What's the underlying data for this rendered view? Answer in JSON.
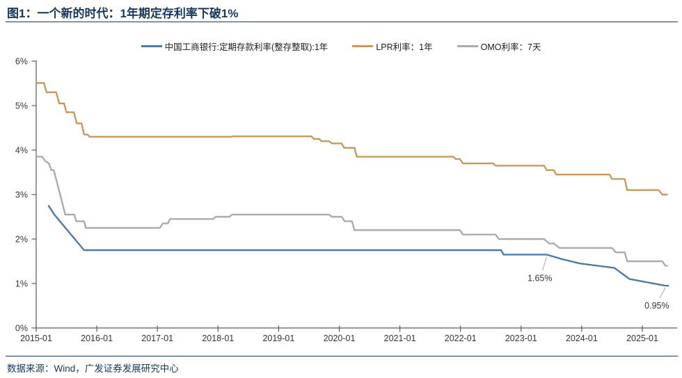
{
  "header": {
    "title": "图1：一个新的时代：1年期定存利率下破1%"
  },
  "footer": {
    "source": "数据来源：Wind，广发证券发展研究中心"
  },
  "theme": {
    "accent_navy": "#17375E",
    "axis_color": "#595959",
    "tick_label_color": "#333333",
    "annotation_color": "#333333",
    "leader_line_color": "#aaaaaa",
    "background": "#ffffff"
  },
  "chart_data": {
    "type": "line",
    "title": "图1：一个新的时代：1年期定存利率下破1%",
    "xlabel": "",
    "ylabel": "",
    "grid": false,
    "legend_position": "top-center",
    "x_axis": {
      "ticks": [
        "2015-01",
        "2016-01",
        "2017-01",
        "2018-01",
        "2019-01",
        "2020-01",
        "2021-01",
        "2022-01",
        "2023-01",
        "2024-01",
        "2025-01"
      ],
      "start_year": 2015.0,
      "end_year": 2025.57
    },
    "y_axis": {
      "ticks": [
        "0%",
        "1%",
        "2%",
        "3%",
        "4%",
        "5%",
        "6%"
      ],
      "min": 0,
      "max": 6,
      "unit": "%"
    },
    "series": [
      {
        "id": "icbc-deposit-1y",
        "name": "中国工商银行:定期存款利率(整存整取):1年",
        "color": "#4F7AA5",
        "points": [
          [
            2015.2,
            2.76
          ],
          [
            2015.3,
            2.55
          ],
          [
            2015.79,
            1.75
          ],
          [
            2022.67,
            1.75
          ],
          [
            2022.71,
            1.65
          ],
          [
            2023.42,
            1.65
          ],
          [
            2023.67,
            1.55
          ],
          [
            2023.97,
            1.45
          ],
          [
            2024.54,
            1.35
          ],
          [
            2024.79,
            1.1
          ],
          [
            2025.38,
            0.95
          ],
          [
            2025.44,
            0.95
          ]
        ]
      },
      {
        "id": "lpr-1y",
        "name": "LPR利率：1年",
        "color": "#C69958",
        "points": [
          [
            2015.0,
            5.51
          ],
          [
            2015.13,
            5.51
          ],
          [
            2015.17,
            5.3
          ],
          [
            2015.33,
            5.3
          ],
          [
            2015.38,
            5.05
          ],
          [
            2015.46,
            5.05
          ],
          [
            2015.5,
            4.85
          ],
          [
            2015.62,
            4.85
          ],
          [
            2015.67,
            4.6
          ],
          [
            2015.75,
            4.6
          ],
          [
            2015.79,
            4.35
          ],
          [
            2015.85,
            4.35
          ],
          [
            2015.88,
            4.3
          ],
          [
            2018.21,
            4.3
          ],
          [
            2018.25,
            4.31
          ],
          [
            2019.54,
            4.31
          ],
          [
            2019.58,
            4.25
          ],
          [
            2019.67,
            4.25
          ],
          [
            2019.71,
            4.2
          ],
          [
            2019.83,
            4.2
          ],
          [
            2019.88,
            4.15
          ],
          [
            2020.04,
            4.15
          ],
          [
            2020.08,
            4.05
          ],
          [
            2020.25,
            4.05
          ],
          [
            2020.29,
            3.85
          ],
          [
            2021.88,
            3.85
          ],
          [
            2021.92,
            3.8
          ],
          [
            2021.99,
            3.8
          ],
          [
            2022.04,
            3.7
          ],
          [
            2022.54,
            3.7
          ],
          [
            2022.58,
            3.65
          ],
          [
            2023.38,
            3.65
          ],
          [
            2023.42,
            3.55
          ],
          [
            2023.54,
            3.55
          ],
          [
            2023.58,
            3.45
          ],
          [
            2024.46,
            3.45
          ],
          [
            2024.5,
            3.35
          ],
          [
            2024.71,
            3.35
          ],
          [
            2024.75,
            3.1
          ],
          [
            2025.27,
            3.1
          ],
          [
            2025.33,
            3.0
          ],
          [
            2025.42,
            3.0
          ]
        ]
      },
      {
        "id": "omo-7d",
        "name": "OMO利率：7天",
        "color": "#ABABAB",
        "points": [
          [
            2015.0,
            3.85
          ],
          [
            2015.1,
            3.85
          ],
          [
            2015.15,
            3.75
          ],
          [
            2015.21,
            3.7
          ],
          [
            2015.25,
            3.55
          ],
          [
            2015.29,
            3.55
          ],
          [
            2015.48,
            2.55
          ],
          [
            2015.63,
            2.55
          ],
          [
            2015.66,
            2.4
          ],
          [
            2015.79,
            2.4
          ],
          [
            2015.82,
            2.25
          ],
          [
            2017.04,
            2.25
          ],
          [
            2017.09,
            2.35
          ],
          [
            2017.17,
            2.35
          ],
          [
            2017.21,
            2.45
          ],
          [
            2017.92,
            2.45
          ],
          [
            2017.96,
            2.5
          ],
          [
            2018.19,
            2.5
          ],
          [
            2018.23,
            2.55
          ],
          [
            2019.83,
            2.55
          ],
          [
            2019.88,
            2.5
          ],
          [
            2020.04,
            2.5
          ],
          [
            2020.09,
            2.4
          ],
          [
            2020.21,
            2.4
          ],
          [
            2020.25,
            2.2
          ],
          [
            2021.99,
            2.2
          ],
          [
            2022.04,
            2.1
          ],
          [
            2022.58,
            2.1
          ],
          [
            2022.63,
            2.0
          ],
          [
            2023.38,
            2.0
          ],
          [
            2023.46,
            1.9
          ],
          [
            2023.54,
            1.9
          ],
          [
            2023.63,
            1.8
          ],
          [
            2024.5,
            1.8
          ],
          [
            2024.56,
            1.7
          ],
          [
            2024.71,
            1.7
          ],
          [
            2024.75,
            1.5
          ],
          [
            2025.33,
            1.5
          ],
          [
            2025.38,
            1.4
          ],
          [
            2025.42,
            1.4
          ]
        ]
      }
    ],
    "annotations": [
      {
        "label": "1.65%",
        "point": [
          2023.42,
          1.65
        ],
        "label_pos": [
          2023.31,
          1.12
        ]
      },
      {
        "label": "0.95%",
        "point": [
          2025.38,
          0.95
        ],
        "label_pos": [
          2025.24,
          0.5
        ]
      }
    ]
  }
}
